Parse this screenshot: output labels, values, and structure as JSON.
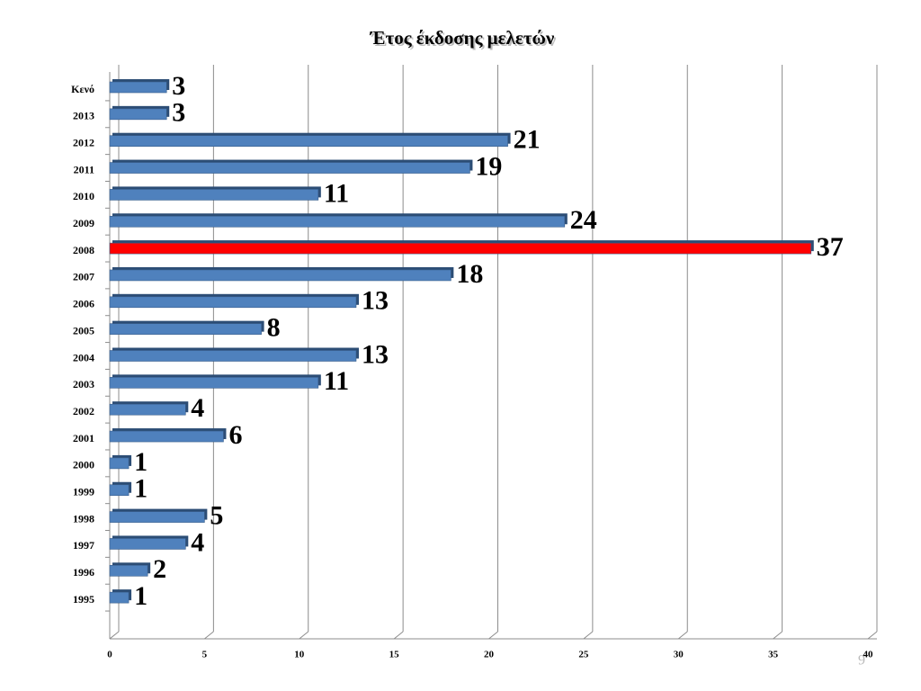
{
  "chart_data": {
    "type": "bar",
    "orientation": "horizontal",
    "title": "Έτος έκδοσης μελετών",
    "categories": [
      "Κενό",
      "2013",
      "2012",
      "2011",
      "2010",
      "2009",
      "2008",
      "2007",
      "2006",
      "2005",
      "2004",
      "2003",
      "2002",
      "2001",
      "2000",
      "1999",
      "1998",
      "1997",
      "1996",
      "1995"
    ],
    "values": [
      3,
      3,
      21,
      19,
      11,
      24,
      37,
      18,
      13,
      8,
      13,
      11,
      4,
      6,
      1,
      1,
      5,
      4,
      2,
      1
    ],
    "colors": [
      "#4f81bd",
      "#4f81bd",
      "#4f81bd",
      "#4f81bd",
      "#4f81bd",
      "#4f81bd",
      "#ff0000",
      "#4f81bd",
      "#4f81bd",
      "#4f81bd",
      "#4f81bd",
      "#4f81bd",
      "#4f81bd",
      "#4f81bd",
      "#4f81bd",
      "#4f81bd",
      "#4f81bd",
      "#4f81bd",
      "#4f81bd",
      "#4f81bd"
    ],
    "xlim": [
      0,
      40
    ],
    "xticks": [
      0,
      5,
      10,
      15,
      20,
      25,
      30,
      35,
      40
    ],
    "grid": true
  },
  "page_number": "9"
}
